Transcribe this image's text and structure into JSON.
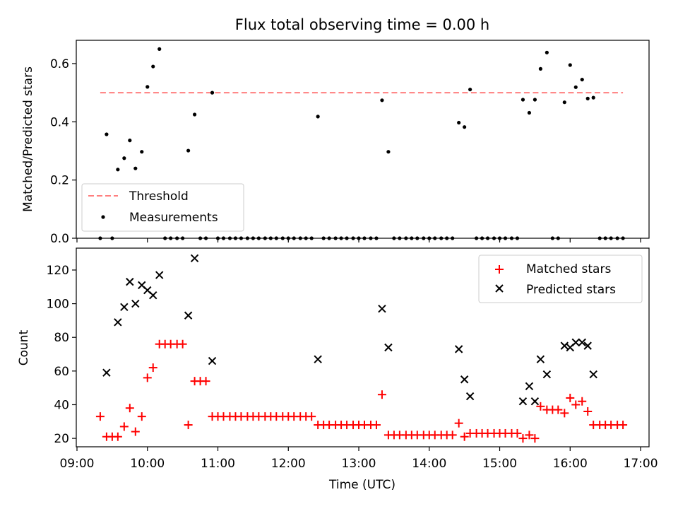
{
  "figure": {
    "title": "Flux total observing time = 0.00 h",
    "xlabel": "Time (UTC)",
    "x_ticks": [
      "09:00",
      "10:00",
      "11:00",
      "12:00",
      "13:00",
      "14:00",
      "15:00",
      "16:00",
      "17:00"
    ]
  },
  "colors": {
    "threshold": "#ff7f7f",
    "measurements": "#000000",
    "matched": "#ff0000",
    "predicted": "#000000"
  },
  "chart_data": [
    {
      "type": "scatter",
      "ylabel": "Matched/Predicted stars",
      "x_unit": "hours UTC",
      "xlim": [
        8.99,
        17.12
      ],
      "ylim": [
        0,
        0.68
      ],
      "yticks": [
        0.0,
        0.2,
        0.4,
        0.6
      ],
      "ytick_labels": [
        "0.0",
        "0.2",
        "0.4",
        "0.6"
      ],
      "legend": {
        "position": "lower-left",
        "entries": [
          "Threshold",
          "Measurements"
        ]
      },
      "threshold": {
        "name": "Threshold",
        "y": 0.5,
        "x_range": [
          9.33,
          16.75
        ]
      },
      "series": [
        {
          "name": "Measurements",
          "points": [
            [
              9.33,
              0
            ],
            [
              9.42,
              0.357
            ],
            [
              9.5,
              0
            ],
            [
              9.58,
              0.236
            ],
            [
              9.67,
              0.275
            ],
            [
              9.75,
              0.336
            ],
            [
              9.83,
              0.24
            ],
            [
              9.92,
              0.297
            ],
            [
              10.0,
              0.52
            ],
            [
              10.08,
              0.59
            ],
            [
              10.17,
              0.65
            ],
            [
              10.25,
              0
            ],
            [
              10.33,
              0
            ],
            [
              10.42,
              0
            ],
            [
              10.5,
              0
            ],
            [
              10.58,
              0.301
            ],
            [
              10.67,
              0.425
            ],
            [
              10.75,
              0
            ],
            [
              10.83,
              0
            ],
            [
              10.92,
              0.5
            ],
            [
              11.0,
              0
            ],
            [
              11.08,
              0
            ],
            [
              11.17,
              0
            ],
            [
              11.25,
              0
            ],
            [
              11.33,
              0
            ],
            [
              11.42,
              0
            ],
            [
              11.5,
              0
            ],
            [
              11.58,
              0
            ],
            [
              11.67,
              0
            ],
            [
              11.75,
              0
            ],
            [
              11.83,
              0
            ],
            [
              11.92,
              0
            ],
            [
              12.0,
              0
            ],
            [
              12.08,
              0
            ],
            [
              12.17,
              0
            ],
            [
              12.25,
              0
            ],
            [
              12.33,
              0
            ],
            [
              12.42,
              0.418
            ],
            [
              12.5,
              0
            ],
            [
              12.58,
              0
            ],
            [
              12.67,
              0
            ],
            [
              12.75,
              0
            ],
            [
              12.83,
              0
            ],
            [
              12.92,
              0
            ],
            [
              13.0,
              0
            ],
            [
              13.08,
              0
            ],
            [
              13.17,
              0
            ],
            [
              13.25,
              0
            ],
            [
              13.33,
              0.474
            ],
            [
              13.42,
              0.297
            ],
            [
              13.5,
              0
            ],
            [
              13.58,
              0
            ],
            [
              13.67,
              0
            ],
            [
              13.75,
              0
            ],
            [
              13.83,
              0
            ],
            [
              13.92,
              0
            ],
            [
              14.0,
              0
            ],
            [
              14.08,
              0
            ],
            [
              14.17,
              0
            ],
            [
              14.25,
              0
            ],
            [
              14.33,
              0
            ],
            [
              14.42,
              0.397
            ],
            [
              14.5,
              0.382
            ],
            [
              14.58,
              0.511
            ],
            [
              14.67,
              0
            ],
            [
              14.75,
              0
            ],
            [
              14.83,
              0
            ],
            [
              14.92,
              0
            ],
            [
              15.0,
              0
            ],
            [
              15.08,
              0
            ],
            [
              15.17,
              0
            ],
            [
              15.25,
              0
            ],
            [
              15.33,
              0.476
            ],
            [
              15.42,
              0.431
            ],
            [
              15.5,
              0.476
            ],
            [
              15.58,
              0.582
            ],
            [
              15.67,
              0.638
            ],
            [
              15.75,
              0
            ],
            [
              15.83,
              0
            ],
            [
              15.92,
              0.467
            ],
            [
              16.0,
              0.595
            ],
            [
              16.08,
              0.519
            ],
            [
              16.17,
              0.545
            ],
            [
              16.25,
              0.48
            ],
            [
              16.33,
              0.483
            ],
            [
              16.42,
              0
            ],
            [
              16.5,
              0
            ],
            [
              16.58,
              0
            ],
            [
              16.67,
              0
            ],
            [
              16.75,
              0
            ]
          ]
        }
      ]
    },
    {
      "type": "scatter",
      "ylabel": "Count",
      "x_unit": "hours UTC",
      "xlim": [
        8.99,
        17.12
      ],
      "ylim": [
        15,
        133
      ],
      "yticks": [
        20,
        40,
        60,
        80,
        100,
        120
      ],
      "ytick_labels": [
        "20",
        "40",
        "60",
        "80",
        "100",
        "120"
      ],
      "legend": {
        "position": "upper-right",
        "entries": [
          "Matched stars",
          "Predicted stars"
        ]
      },
      "series": [
        {
          "name": "Matched stars",
          "marker": "plus",
          "points": [
            [
              9.33,
              33
            ],
            [
              9.42,
              21
            ],
            [
              9.5,
              21
            ],
            [
              9.58,
              21
            ],
            [
              9.67,
              27
            ],
            [
              9.75,
              38
            ],
            [
              9.83,
              24
            ],
            [
              9.92,
              33
            ],
            [
              10.0,
              56
            ],
            [
              10.08,
              62
            ],
            [
              10.17,
              76
            ],
            [
              10.25,
              76
            ],
            [
              10.33,
              76
            ],
            [
              10.42,
              76
            ],
            [
              10.5,
              76
            ],
            [
              10.58,
              28
            ],
            [
              10.67,
              54
            ],
            [
              10.75,
              54
            ],
            [
              10.83,
              54
            ],
            [
              10.92,
              33
            ],
            [
              11.0,
              33
            ],
            [
              11.08,
              33
            ],
            [
              11.17,
              33
            ],
            [
              11.25,
              33
            ],
            [
              11.33,
              33
            ],
            [
              11.42,
              33
            ],
            [
              11.5,
              33
            ],
            [
              11.58,
              33
            ],
            [
              11.67,
              33
            ],
            [
              11.75,
              33
            ],
            [
              11.83,
              33
            ],
            [
              11.92,
              33
            ],
            [
              12.0,
              33
            ],
            [
              12.08,
              33
            ],
            [
              12.17,
              33
            ],
            [
              12.25,
              33
            ],
            [
              12.33,
              33
            ],
            [
              12.42,
              28
            ],
            [
              12.5,
              28
            ],
            [
              12.58,
              28
            ],
            [
              12.67,
              28
            ],
            [
              12.75,
              28
            ],
            [
              12.83,
              28
            ],
            [
              12.92,
              28
            ],
            [
              13.0,
              28
            ],
            [
              13.08,
              28
            ],
            [
              13.17,
              28
            ],
            [
              13.25,
              28
            ],
            [
              13.33,
              46
            ],
            [
              13.42,
              22
            ],
            [
              13.5,
              22
            ],
            [
              13.58,
              22
            ],
            [
              13.67,
              22
            ],
            [
              13.75,
              22
            ],
            [
              13.83,
              22
            ],
            [
              13.92,
              22
            ],
            [
              14.0,
              22
            ],
            [
              14.08,
              22
            ],
            [
              14.17,
              22
            ],
            [
              14.25,
              22
            ],
            [
              14.33,
              22
            ],
            [
              14.42,
              29
            ],
            [
              14.5,
              21
            ],
            [
              14.58,
              23
            ],
            [
              14.67,
              23
            ],
            [
              14.75,
              23
            ],
            [
              14.83,
              23
            ],
            [
              14.92,
              23
            ],
            [
              15.0,
              23
            ],
            [
              15.08,
              23
            ],
            [
              15.17,
              23
            ],
            [
              15.25,
              23
            ],
            [
              15.33,
              20
            ],
            [
              15.42,
              22
            ],
            [
              15.5,
              20
            ],
            [
              15.58,
              39
            ],
            [
              15.67,
              37
            ],
            [
              15.75,
              37
            ],
            [
              15.83,
              37
            ],
            [
              15.92,
              35
            ],
            [
              16.0,
              44
            ],
            [
              16.08,
              40
            ],
            [
              16.17,
              42
            ],
            [
              16.25,
              36
            ],
            [
              16.33,
              28
            ],
            [
              16.42,
              28
            ],
            [
              16.5,
              28
            ],
            [
              16.58,
              28
            ],
            [
              16.67,
              28
            ],
            [
              16.75,
              28
            ]
          ]
        },
        {
          "name": "Predicted stars",
          "marker": "x",
          "points": [
            [
              9.42,
              59
            ],
            [
              9.58,
              89
            ],
            [
              9.67,
              98
            ],
            [
              9.75,
              113
            ],
            [
              9.83,
              100
            ],
            [
              9.92,
              111
            ],
            [
              10.0,
              108
            ],
            [
              10.08,
              105
            ],
            [
              10.17,
              117
            ],
            [
              10.58,
              93
            ],
            [
              10.67,
              127
            ],
            [
              10.92,
              66
            ],
            [
              12.42,
              67
            ],
            [
              13.33,
              97
            ],
            [
              13.42,
              74
            ],
            [
              14.42,
              73
            ],
            [
              14.5,
              55
            ],
            [
              14.58,
              45
            ],
            [
              15.33,
              42
            ],
            [
              15.42,
              51
            ],
            [
              15.5,
              42
            ],
            [
              15.58,
              67
            ],
            [
              15.67,
              58
            ],
            [
              15.92,
              75
            ],
            [
              16.0,
              74
            ],
            [
              16.08,
              77
            ],
            [
              16.17,
              77
            ],
            [
              16.25,
              75
            ],
            [
              16.33,
              58
            ]
          ]
        }
      ]
    }
  ]
}
